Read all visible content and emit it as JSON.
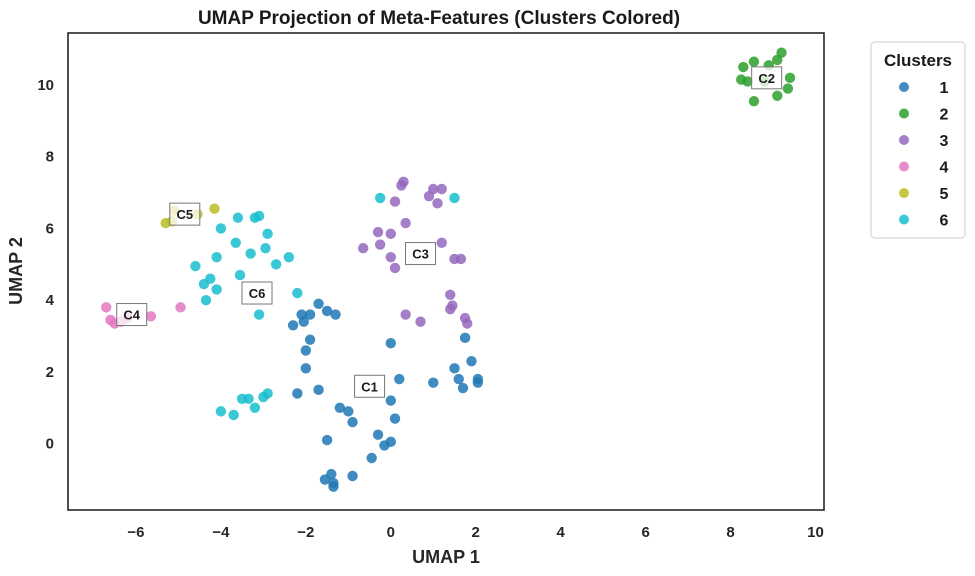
{
  "chart_data": {
    "type": "scatter",
    "title": "UMAP Projection of Meta-Features (Clusters Colored)",
    "xlabel": "UMAP 1",
    "ylabel": "UMAP 2",
    "xlim": [
      -7.6,
      10.2
    ],
    "ylim": [
      -1.85,
      11.45
    ],
    "xticks": [
      -6,
      -4,
      -2,
      0,
      2,
      4,
      6,
      8,
      10
    ],
    "yticks": [
      0,
      2,
      4,
      6,
      8,
      10
    ],
    "xtick_labels": [
      "−6",
      "−4",
      "−2",
      "0",
      "2",
      "4",
      "6",
      "8",
      "10"
    ],
    "ytick_labels": [
      "0",
      "2",
      "4",
      "6",
      "8",
      "10"
    ],
    "grid": false,
    "legend": {
      "title": "Clusters",
      "placement": "outside-upper-right"
    },
    "series": [
      {
        "name": "1",
        "color": "#1f77b4",
        "points": [
          [
            -1.7,
            3.9
          ],
          [
            -1.5,
            3.7
          ],
          [
            -1.3,
            3.6
          ],
          [
            -1.9,
            3.6
          ],
          [
            -2.1,
            3.6
          ],
          [
            -2.3,
            3.3
          ],
          [
            -2.05,
            3.4
          ],
          [
            0.0,
            2.8
          ],
          [
            -1.9,
            2.9
          ],
          [
            -2.0,
            2.6
          ],
          [
            -2.0,
            2.1
          ],
          [
            -1.7,
            1.5
          ],
          [
            -2.2,
            1.4
          ],
          [
            0.2,
            1.8
          ],
          [
            -1.2,
            1.0
          ],
          [
            -1.0,
            0.9
          ],
          [
            -0.9,
            0.6
          ],
          [
            0.0,
            1.2
          ],
          [
            0.1,
            0.7
          ],
          [
            -0.3,
            0.25
          ],
          [
            0.0,
            0.05
          ],
          [
            -0.15,
            -0.05
          ],
          [
            -1.5,
            0.1
          ],
          [
            -0.45,
            -0.4
          ],
          [
            -0.9,
            -0.9
          ],
          [
            -1.4,
            -0.85
          ],
          [
            -1.55,
            -1.0
          ],
          [
            -1.35,
            -1.1
          ],
          [
            -1.35,
            -1.2
          ],
          [
            1.0,
            1.7
          ],
          [
            1.5,
            2.1
          ],
          [
            1.6,
            1.8
          ],
          [
            1.9,
            2.3
          ],
          [
            1.75,
            2.95
          ],
          [
            2.05,
            1.8
          ],
          [
            2.05,
            1.7
          ],
          [
            1.7,
            1.55
          ]
        ]
      },
      {
        "name": "2",
        "color": "#2ca02c",
        "points": [
          [
            8.3,
            10.5
          ],
          [
            8.55,
            10.65
          ],
          [
            8.9,
            10.55
          ],
          [
            9.1,
            10.7
          ],
          [
            9.2,
            10.9
          ],
          [
            9.4,
            10.2
          ],
          [
            8.25,
            10.15
          ],
          [
            8.4,
            10.1
          ],
          [
            8.8,
            10.1
          ],
          [
            9.35,
            9.9
          ],
          [
            8.55,
            9.55
          ],
          [
            9.1,
            9.7
          ]
        ]
      },
      {
        "name": "3",
        "color": "#9467bd",
        "points": [
          [
            0.3,
            7.3
          ],
          [
            0.25,
            7.2
          ],
          [
            1.0,
            7.1
          ],
          [
            1.2,
            7.1
          ],
          [
            0.9,
            6.9
          ],
          [
            1.1,
            6.7
          ],
          [
            0.1,
            6.75
          ],
          [
            0.35,
            6.15
          ],
          [
            -0.3,
            5.9
          ],
          [
            0.0,
            5.85
          ],
          [
            -0.25,
            5.55
          ],
          [
            -0.65,
            5.45
          ],
          [
            1.2,
            5.6
          ],
          [
            0.0,
            5.2
          ],
          [
            1.5,
            5.15
          ],
          [
            1.65,
            5.15
          ],
          [
            0.1,
            4.9
          ],
          [
            1.4,
            4.15
          ],
          [
            1.45,
            3.85
          ],
          [
            1.4,
            3.75
          ],
          [
            0.35,
            3.6
          ],
          [
            0.7,
            3.4
          ],
          [
            1.75,
            3.5
          ],
          [
            1.8,
            3.35
          ]
        ]
      },
      {
        "name": "4",
        "color": "#e377c2",
        "points": [
          [
            -6.7,
            3.8
          ],
          [
            -6.6,
            3.45
          ],
          [
            -6.5,
            3.35
          ],
          [
            -6.35,
            3.4
          ],
          [
            -6.2,
            3.5
          ],
          [
            -5.65,
            3.55
          ],
          [
            -4.95,
            3.8
          ]
        ]
      },
      {
        "name": "5",
        "color": "#bcbd22",
        "points": [
          [
            -5.1,
            6.5
          ],
          [
            -4.15,
            6.55
          ],
          [
            -4.55,
            6.4
          ],
          [
            -5.3,
            6.15
          ],
          [
            -5.15,
            6.2
          ]
        ]
      },
      {
        "name": "6",
        "color": "#17becf",
        "points": [
          [
            -0.25,
            6.85
          ],
          [
            1.5,
            6.85
          ],
          [
            -3.6,
            6.3
          ],
          [
            -3.2,
            6.3
          ],
          [
            -3.1,
            6.35
          ],
          [
            -4.0,
            6.0
          ],
          [
            -2.9,
            5.85
          ],
          [
            -3.65,
            5.6
          ],
          [
            -2.95,
            5.45
          ],
          [
            -4.1,
            5.2
          ],
          [
            -3.3,
            5.3
          ],
          [
            -2.4,
            5.2
          ],
          [
            -2.7,
            5.0
          ],
          [
            -4.6,
            4.95
          ],
          [
            -3.55,
            4.7
          ],
          [
            -4.25,
            4.6
          ],
          [
            -4.4,
            4.45
          ],
          [
            -4.1,
            4.3
          ],
          [
            -4.35,
            4.0
          ],
          [
            -2.2,
            4.2
          ],
          [
            -3.1,
            3.6
          ],
          [
            -2.9,
            1.4
          ],
          [
            -3.5,
            1.25
          ],
          [
            -3.0,
            1.3
          ],
          [
            -3.35,
            1.25
          ],
          [
            -4.0,
            0.9
          ],
          [
            -3.7,
            0.8
          ],
          [
            -3.2,
            1.0
          ]
        ]
      }
    ],
    "cluster_labels": [
      {
        "text": "C1",
        "x": -0.5,
        "y": 1.6
      },
      {
        "text": "C2",
        "x": 8.85,
        "y": 10.2
      },
      {
        "text": "C3",
        "x": 0.7,
        "y": 5.3
      },
      {
        "text": "C4",
        "x": -6.1,
        "y": 3.6
      },
      {
        "text": "C5",
        "x": -4.85,
        "y": 6.4
      },
      {
        "text": "C6",
        "x": -3.15,
        "y": 4.2
      }
    ]
  }
}
